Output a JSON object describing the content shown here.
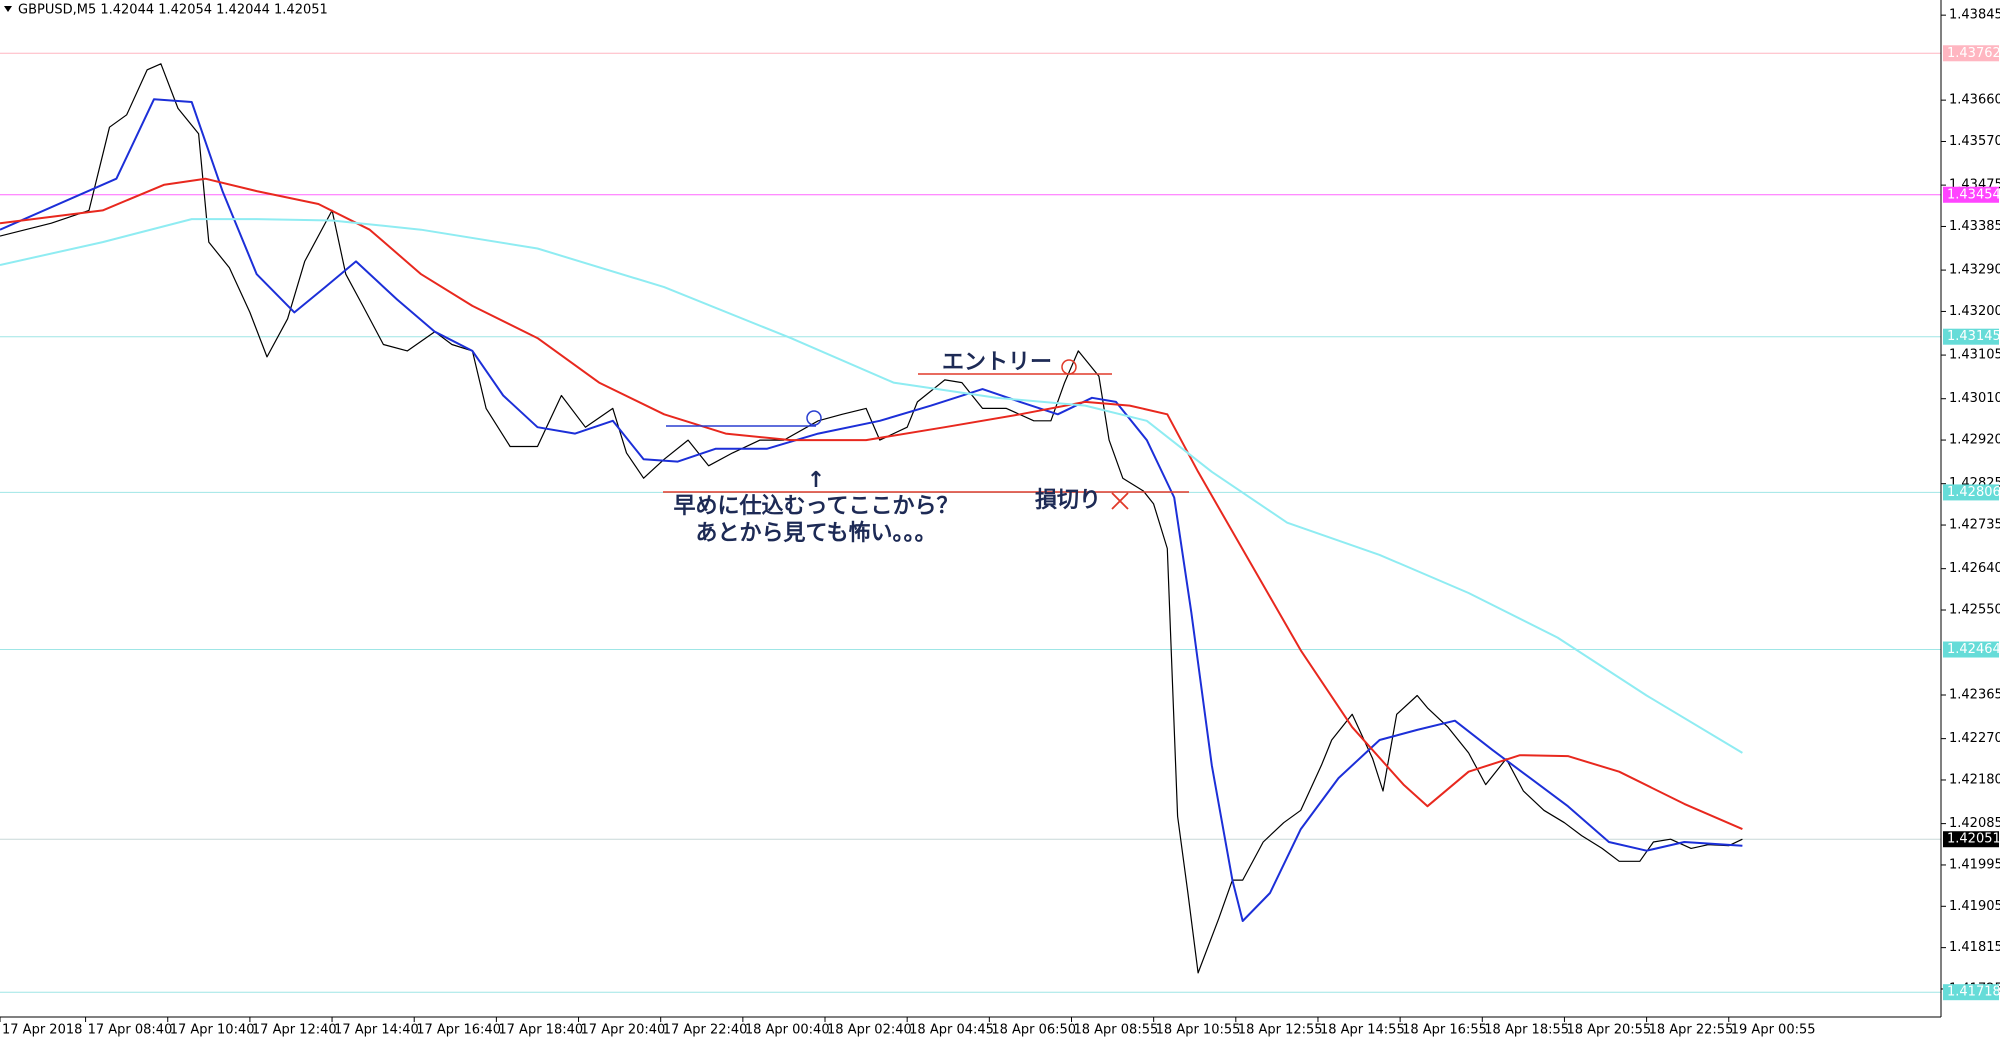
{
  "chart_data": {
    "type": "line",
    "header": "GBPUSD,M5  1.42044 1.42054 1.42044 1.42051",
    "ylim": [
      1.41664,
      1.43878
    ],
    "xlim": [
      0,
      567
    ],
    "yticks": [
      {
        "value": 1.43845,
        "label": "1.43845"
      },
      {
        "value": 1.4366,
        "label": "1.43660"
      },
      {
        "value": 1.4357,
        "label": "1.43570"
      },
      {
        "value": 1.43475,
        "label": "1.43475"
      },
      {
        "value": 1.43385,
        "label": "1.43385"
      },
      {
        "value": 1.4329,
        "label": "1.43290"
      },
      {
        "value": 1.432,
        "label": "1.43200"
      },
      {
        "value": 1.43105,
        "label": "1.43105"
      },
      {
        "value": 1.4301,
        "label": "1.43010"
      },
      {
        "value": 1.4292,
        "label": "1.42920"
      },
      {
        "value": 1.42825,
        "label": "1.42825"
      },
      {
        "value": 1.42735,
        "label": "1.42735"
      },
      {
        "value": 1.4264,
        "label": "1.42640"
      },
      {
        "value": 1.4255,
        "label": "1.42550"
      },
      {
        "value": 1.42365,
        "label": "1.42365"
      },
      {
        "value": 1.4227,
        "label": "1.42270"
      },
      {
        "value": 1.4218,
        "label": "1.42180"
      },
      {
        "value": 1.42085,
        "label": "1.42085"
      },
      {
        "value": 1.41995,
        "label": "1.41995"
      },
      {
        "value": 1.41905,
        "label": "1.41905"
      },
      {
        "value": 1.41815,
        "label": "1.41815"
      },
      {
        "value": 1.41725,
        "label": "1.41725"
      }
    ],
    "xticks": [
      {
        "value": 0,
        "label": "17 Apr 2018"
      },
      {
        "value": 25,
        "label": "17 Apr 08:40"
      },
      {
        "value": 49,
        "label": "17 Apr 10:40"
      },
      {
        "value": 73,
        "label": "17 Apr 12:40"
      },
      {
        "value": 97,
        "label": "17 Apr 14:40"
      },
      {
        "value": 121,
        "label": "17 Apr 16:40"
      },
      {
        "value": 145,
        "label": "17 Apr 18:40"
      },
      {
        "value": 169,
        "label": "17 Apr 20:40"
      },
      {
        "value": 193,
        "label": "17 Apr 22:40"
      },
      {
        "value": 217,
        "label": "18 Apr 00:40"
      },
      {
        "value": 241,
        "label": "18 Apr 02:40"
      },
      {
        "value": 265,
        "label": "18 Apr 04:45"
      },
      {
        "value": 289,
        "label": "18 Apr 06:50"
      },
      {
        "value": 313,
        "label": "18 Apr 08:55"
      },
      {
        "value": 337,
        "label": "18 Apr 10:55"
      },
      {
        "value": 361,
        "label": "18 Apr 12:55"
      },
      {
        "value": 385,
        "label": "18 Apr 14:55"
      },
      {
        "value": 409,
        "label": "18 Apr 16:55"
      },
      {
        "value": 433,
        "label": "18 Apr 18:55"
      },
      {
        "value": 457,
        "label": "18 Apr 20:55"
      },
      {
        "value": 481,
        "label": "18 Apr 22:55"
      },
      {
        "value": 505,
        "label": "19 Apr 00:55"
      }
    ],
    "levels": [
      {
        "price": 1.43762,
        "color": "#ffb6c1",
        "label_color": "#ffb6c1"
      },
      {
        "price": 1.43454,
        "color": "#ff66ff",
        "label_color": "#ff44ff"
      },
      {
        "price": 1.43145,
        "color": "#9fe6e6",
        "label_color": "#66dcd8"
      },
      {
        "price": 1.42806,
        "color": "#9fe6e6",
        "label_color": "#66dcd8"
      },
      {
        "price": 1.42464,
        "color": "#9fe6e6",
        "label_color": "#66dcd8"
      },
      {
        "price": 1.42051,
        "color": "#c8d8d8",
        "label_color": "#000000"
      },
      {
        "price": 1.41718,
        "color": "#9fe6e6",
        "label_color": "#66dcd8"
      }
    ],
    "series": [
      {
        "color": "#000000",
        "width": 1.2,
        "x": [
          0,
          15,
          26,
          32,
          37,
          43,
          47,
          52,
          58,
          61,
          67,
          73,
          78,
          84,
          89,
          97,
          101,
          106,
          112,
          119,
          127,
          132,
          138,
          142,
          149,
          157,
          164,
          171,
          179,
          183,
          188,
          194,
          201,
          207,
          214,
          222,
          229,
          239,
          246,
          253,
          257,
          265,
          268,
          276,
          281,
          287,
          294,
          302,
          307,
          311,
          315,
          321,
          324,
          328,
          334,
          337,
          341,
          344,
          347,
          350,
          356,
          360,
          363,
          369,
          375,
          380,
          386,
          389,
          395,
          401,
          404,
          408,
          414,
          417,
          423,
          429,
          434,
          440,
          445,
          451,
          457,
          462,
          468,
          473,
          479,
          483,
          488,
          494,
          499,
          505,
          509
        ],
        "values": [
          1.43364,
          1.43392,
          1.4342,
          1.43601,
          1.43628,
          1.43726,
          1.43739,
          1.43642,
          1.43587,
          1.43351,
          1.43295,
          1.43198,
          1.43101,
          1.43184,
          1.43309,
          1.4342,
          1.43281,
          1.43212,
          1.43128,
          1.43114,
          1.43156,
          1.43128,
          1.43114,
          1.42989,
          1.42906,
          1.42906,
          1.43017,
          1.42948,
          1.42989,
          1.42892,
          1.42837,
          1.42878,
          1.4292,
          1.42864,
          1.42892,
          1.4292,
          1.4292,
          1.42962,
          1.42976,
          1.42989,
          1.4292,
          1.42948,
          1.43003,
          1.43051,
          1.43045,
          1.42989,
          1.42989,
          1.42962,
          1.42962,
          1.43045,
          1.43114,
          1.43059,
          1.4292,
          1.42837,
          1.42809,
          1.42781,
          1.42684,
          1.42101,
          1.41934,
          1.4176,
          1.41878,
          1.41962,
          1.41962,
          1.42045,
          1.42087,
          1.42114,
          1.42212,
          1.42267,
          1.42323,
          1.42226,
          1.42156,
          1.42323,
          1.42364,
          1.42337,
          1.42295,
          1.42239,
          1.4217,
          1.42226,
          1.42156,
          1.42114,
          1.42087,
          1.42059,
          1.42031,
          1.42003,
          1.42003,
          1.42045,
          1.42051,
          1.42031,
          1.42039,
          1.42037,
          1.42051
        ]
      },
      {
        "color": "#1c2fd8",
        "width": 2,
        "x": [
          0,
          34,
          45,
          56,
          65,
          75,
          86,
          95,
          104,
          116,
          127,
          138,
          147,
          157,
          168,
          179,
          188,
          198,
          209,
          224,
          239,
          257,
          272,
          287,
          298,
          309,
          319,
          326,
          335,
          343,
          348,
          354,
          360,
          363,
          371,
          380,
          391,
          403,
          414,
          425,
          436,
          447,
          458,
          470,
          481,
          492,
          509
        ],
        "values": [
          1.43378,
          1.43489,
          1.43662,
          1.43656,
          1.43462,
          1.43281,
          1.43198,
          1.43253,
          1.43309,
          1.43226,
          1.43156,
          1.43114,
          1.43017,
          1.42948,
          1.42934,
          1.42962,
          1.42878,
          1.42873,
          1.42901,
          1.42901,
          1.42934,
          1.42962,
          1.42995,
          1.43031,
          1.43003,
          1.42976,
          1.43012,
          1.43003,
          1.4292,
          1.42795,
          1.42545,
          1.42212,
          1.41962,
          1.41873,
          1.41934,
          1.42073,
          1.42184,
          1.42267,
          1.42289,
          1.42309,
          1.42245,
          1.42184,
          1.42123,
          1.42045,
          1.42026,
          1.42045,
          1.42037
        ]
      },
      {
        "color": "#e8281e",
        "width": 2,
        "x": [
          0,
          30,
          48,
          60,
          75,
          93,
          108,
          123,
          138,
          157,
          175,
          194,
          212,
          231,
          253,
          276,
          298,
          317,
          330,
          341,
          350,
          365,
          380,
          395,
          410,
          417,
          429,
          444,
          458,
          473,
          492,
          509
        ],
        "values": [
          1.43392,
          1.4342,
          1.43476,
          1.43489,
          1.43462,
          1.43434,
          1.43378,
          1.43281,
          1.43212,
          1.43142,
          1.43045,
          1.42976,
          1.42934,
          1.4292,
          1.4292,
          1.42948,
          1.42976,
          1.43003,
          1.42995,
          1.42976,
          1.42851,
          1.42656,
          1.42462,
          1.42295,
          1.4217,
          1.42123,
          1.42198,
          1.42234,
          1.42232,
          1.42198,
          1.42128,
          1.42073
        ]
      },
      {
        "color": "#8fecf2",
        "width": 2,
        "x": [
          0,
          30,
          56,
          75,
          97,
          123,
          157,
          194,
          231,
          261,
          291,
          317,
          335,
          354,
          376,
          403,
          429,
          455,
          481,
          509
        ],
        "values": [
          1.43301,
          1.43351,
          1.43401,
          1.43401,
          1.43398,
          1.43378,
          1.43337,
          1.43253,
          1.43142,
          1.43045,
          1.43012,
          1.42995,
          1.42962,
          1.42851,
          1.4274,
          1.4267,
          1.42587,
          1.4249,
          1.42364,
          1.42239
        ]
      }
    ],
    "annotations": [
      "エントリー",
      "損切り",
      "↑",
      "早めに仕込むってここから？",
      "あとから見ても怖い。。。"
    ]
  }
}
